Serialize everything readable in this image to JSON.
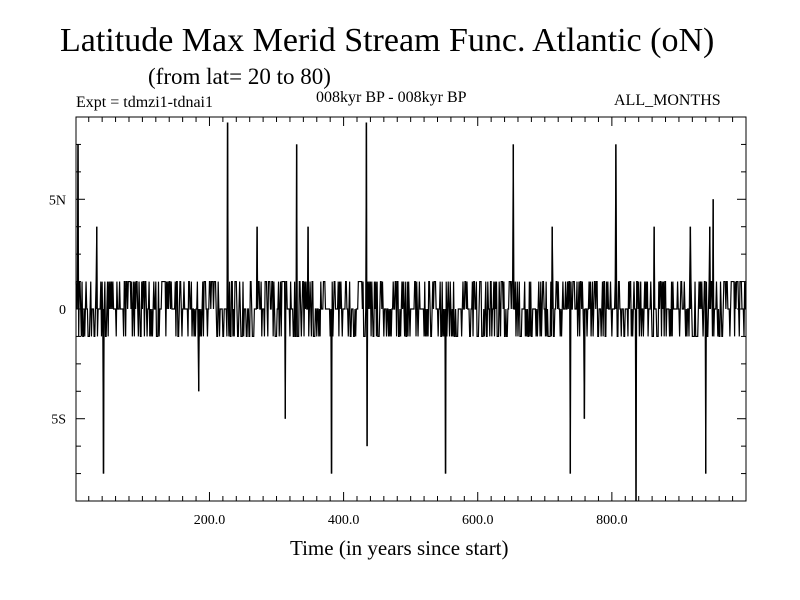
{
  "header": {
    "title": "Latitude Max Merid Stream Func. Atlantic (oN)",
    "subtitle": "(from lat= 20 to 80)",
    "experiment": "Expt = tdmzi1-tdnai1",
    "period": "008kyr BP - 008kyr BP",
    "months": "ALL_MONTHS"
  },
  "chart_data": {
    "type": "line",
    "title": "Latitude Max Merid Stream Func. Atlantic (oN)",
    "subtitle": "(from lat= 20 to 80)",
    "xlabel": "Time (in years since start)",
    "ylabel": "",
    "xlim": [
      1,
      1000
    ],
    "ylim": [
      -8.75,
      8.75
    ],
    "x_ticks": [
      {
        "value": 200,
        "label": "200.0"
      },
      {
        "value": 400,
        "label": "400.0"
      },
      {
        "value": 600,
        "label": "600.0"
      },
      {
        "value": 800,
        "label": "800.0"
      }
    ],
    "y_ticks": [
      {
        "value": 5,
        "label": "5N"
      },
      {
        "value": 0,
        "label": "0"
      },
      {
        "value": -5,
        "label": "5S"
      }
    ],
    "baseline_oscillation": {
      "high": 1.25,
      "low": -1.25,
      "description": "series alternates rapidly between about -1.25 and 1.25 with frequent zero values"
    },
    "spikes": [
      {
        "x": 4,
        "y": 7.5
      },
      {
        "x": 32,
        "y": 3.75
      },
      {
        "x": 42,
        "y": -7.5
      },
      {
        "x": 184,
        "y": -3.75
      },
      {
        "x": 227,
        "y": 8.5
      },
      {
        "x": 271,
        "y": 3.75
      },
      {
        "x": 313,
        "y": -5.0
      },
      {
        "x": 330,
        "y": 7.5
      },
      {
        "x": 347,
        "y": 3.75
      },
      {
        "x": 382,
        "y": -7.5
      },
      {
        "x": 434,
        "y": 8.5
      },
      {
        "x": 435,
        "y": -6.25
      },
      {
        "x": 552,
        "y": -7.5
      },
      {
        "x": 653,
        "y": 7.5
      },
      {
        "x": 711,
        "y": 3.75
      },
      {
        "x": 738,
        "y": -7.5
      },
      {
        "x": 759,
        "y": -5.0
      },
      {
        "x": 806,
        "y": 7.5
      },
      {
        "x": 836,
        "y": -8.75
      },
      {
        "x": 863,
        "y": 3.75
      },
      {
        "x": 917,
        "y": 3.75
      },
      {
        "x": 940,
        "y": -7.5
      },
      {
        "x": 946,
        "y": 3.75
      },
      {
        "x": 951,
        "y": 5.0
      }
    ]
  }
}
